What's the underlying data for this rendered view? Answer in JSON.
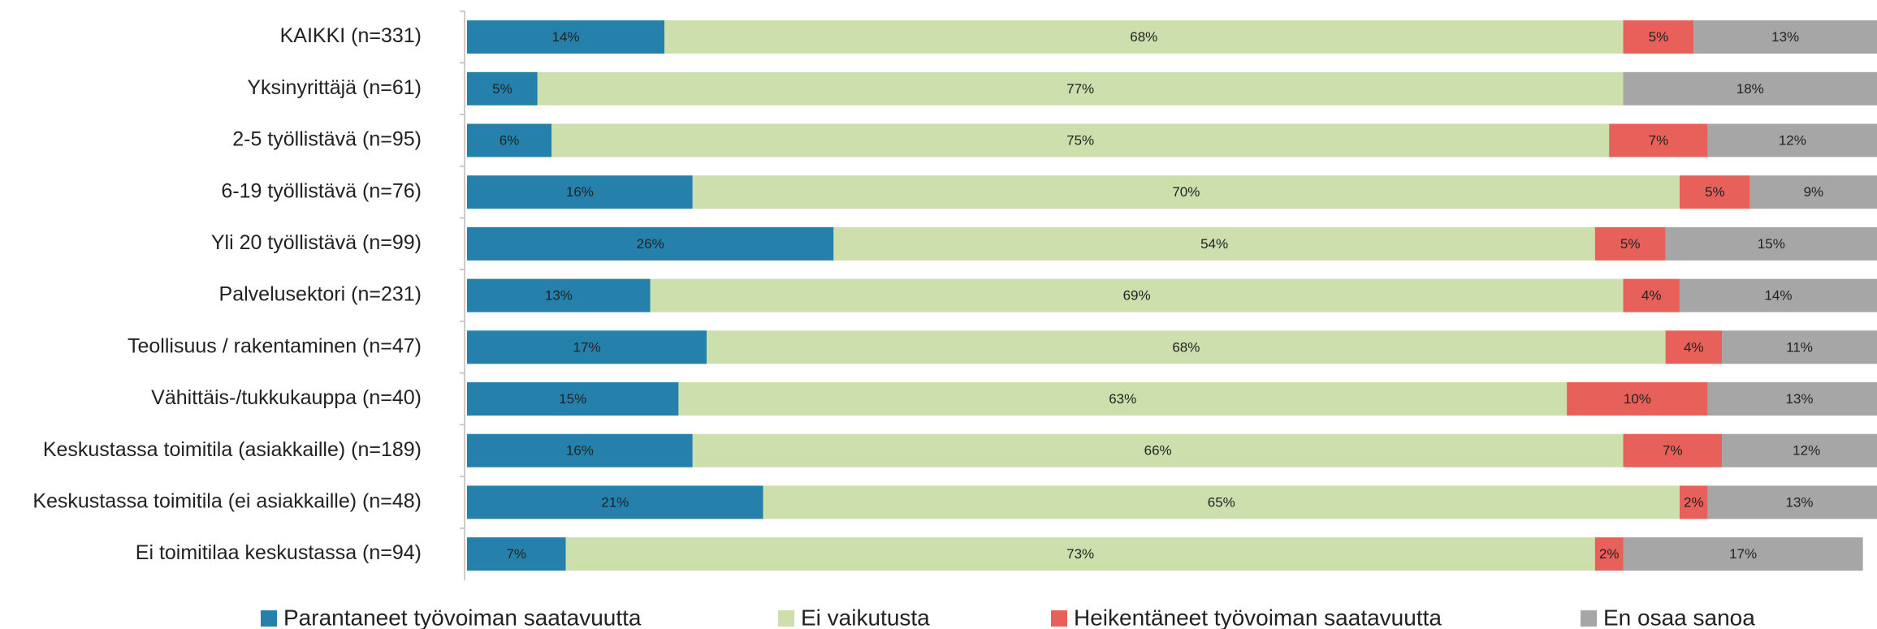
{
  "chart_data": {
    "type": "stacked-bar-horizontal",
    "categories": [
      "KAIKKI (n=331)",
      "Yksinyrittäjä  (n=61)",
      "2-5 työllistävä (n=95)",
      "6-19 työllistävä (n=76)",
      "Yli 20 työllistävä (n=99)",
      "Palvelusektori (n=231)",
      "Teollisuus / rakentaminen (n=47)",
      "Vähittäis-/tukkukauppa (n=40)",
      "Keskustassa toimitila (asiakkaille) (n=189)",
      "Keskustassa toimitila (ei asiakkaille) (n=48)",
      "Ei toimitilaa keskustassa (n=94)"
    ],
    "xlim": [
      0,
      100
    ],
    "legend": "bottom",
    "series": [
      {
        "name": "Parantaneet työvoiman saatavuutta",
        "color": "#2581ab",
        "values": [
          14,
          5,
          6,
          16,
          26,
          13,
          17,
          15,
          16,
          21,
          7
        ],
        "value_labels": [
          "14%",
          "5%",
          "6%",
          "16%",
          "26%",
          "13%",
          "17%",
          "15%",
          "16%",
          "21%",
          "7%"
        ]
      },
      {
        "name": "Ei vaikutusta",
        "color": "#cddfad",
        "values": [
          68,
          77,
          75,
          70,
          54,
          69,
          68,
          63,
          66,
          65,
          73
        ],
        "value_labels": [
          "68%",
          "77%",
          "75%",
          "70%",
          "54%",
          "69%",
          "68%",
          "63%",
          "66%",
          "65%",
          "73%"
        ]
      },
      {
        "name": "Heikentäneet työvoiman saatavuutta",
        "color": "#e8605a",
        "values": [
          5,
          null,
          7,
          5,
          5,
          4,
          4,
          10,
          7,
          2,
          2
        ],
        "value_labels": [
          "5%",
          null,
          "7%",
          "5%",
          "5%",
          "4%",
          "4%",
          "10%",
          "7%",
          "2%",
          "2%"
        ]
      },
      {
        "name": "En osaa sanoa",
        "color": "#a6a6a6",
        "values": [
          13,
          18,
          12,
          9,
          15,
          14,
          11,
          13,
          12,
          13,
          17
        ],
        "value_labels": [
          "13%",
          "18%",
          "12%",
          "9%",
          "15%",
          "14%",
          "11%",
          "13%",
          "12%",
          "13%",
          "17%"
        ]
      }
    ]
  }
}
